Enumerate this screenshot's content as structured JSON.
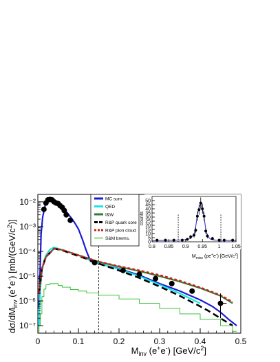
{
  "chart_data": [
    {
      "type": "line",
      "xlabel": "M_inv (e⁺e⁻) [GeV/c²]",
      "ylabel": "dσ/dM_inv (e⁺e⁻) [mb/(GeV/c²)]",
      "xlim": [
        0,
        0.5
      ],
      "ylim": [
        5e-08,
        0.02
      ],
      "yscale": "log",
      "x_ticks": [
        "0",
        "0.1",
        "0.2",
        "0.3",
        "0.4",
        "0.5"
      ],
      "y_ticks": [
        "10⁻⁷",
        "10⁻⁶",
        "10⁻⁵",
        "10⁻⁴",
        "10⁻³",
        "10⁻²"
      ],
      "vertical_line_x": 0.15,
      "legend_position": "top-center",
      "series": [
        {
          "name": "MC sum",
          "color": "#1a1ad6",
          "style": "solid",
          "x": [
            0.003,
            0.008,
            0.012,
            0.018,
            0.025,
            0.032,
            0.04,
            0.05,
            0.06,
            0.07,
            0.08,
            0.09,
            0.1,
            0.11,
            0.12,
            0.13,
            0.14,
            0.15,
            0.2,
            0.25,
            0.3,
            0.35,
            0.4,
            0.43,
            0.45,
            0.47,
            0.49
          ],
          "y": [
            5e-07,
            0.0005,
            0.0025,
            0.007,
            0.012,
            0.0125,
            0.011,
            0.008,
            0.006,
            0.004,
            0.0025,
            0.0015,
            0.0008,
            0.0003,
            0.0001,
            4e-05,
            3.5e-05,
            3.2e-05,
            2e-05,
            1.1e-05,
            5e-06,
            2.5e-06,
            1.1e-06,
            6e-07,
            3.5e-07,
            1.8e-07,
            1e-07
          ]
        },
        {
          "name": "QED",
          "color": "#19e6e6",
          "style": "solid",
          "x": [
            0.003,
            0.006,
            0.01,
            0.015,
            0.02,
            0.03,
            0.04,
            0.05,
            0.06,
            0.08,
            0.1,
            0.12,
            0.15,
            0.2,
            0.25,
            0.3,
            0.35,
            0.4
          ],
          "y": [
            1e-07,
            3e-06,
            1.5e-05,
            4e-05,
            7e-05,
            0.00012,
            0.000145,
            0.00013,
            0.000115,
            9e-05,
            7e-05,
            5e-05,
            3.3e-05,
            1.9e-05,
            1e-05,
            4.5e-06,
            2e-06,
            8e-07
          ]
        },
        {
          "name": "I&W",
          "color": "#2e7d32",
          "style": "solid",
          "x": [
            0.003,
            0.01,
            0.02,
            0.04,
            0.06,
            0.08,
            0.1,
            0.12,
            0.15,
            0.2,
            0.25,
            0.3,
            0.35,
            0.4,
            0.45,
            0.48
          ],
          "y": [
            2e-06,
            2e-05,
            6e-05,
            0.00013,
            0.000115,
            9e-05,
            7e-05,
            5.5e-05,
            3.8e-05,
            2.4e-05,
            1.6e-05,
            1e-05,
            6e-06,
            3.3e-06,
            1.6e-06,
            8e-07
          ]
        },
        {
          "name": "R&P quark core",
          "color": "#000000",
          "style": "dashed",
          "x": [
            0.003,
            0.01,
            0.02,
            0.04,
            0.06,
            0.08,
            0.1,
            0.12,
            0.15,
            0.2,
            0.25,
            0.3,
            0.35,
            0.4,
            0.42,
            0.45,
            0.48
          ],
          "y": [
            2e-06,
            2e-05,
            6e-05,
            0.00013,
            0.00011,
            8.5e-05,
            6.5e-05,
            5e-05,
            3.2e-05,
            1.7e-05,
            8.5e-06,
            3.8e-06,
            1.6e-06,
            6e-07,
            4e-07,
            2e-07,
            1e-07
          ]
        },
        {
          "name": "R&P pion cloud",
          "color": "#cc1f1f",
          "style": "dotted",
          "x": [
            0.003,
            0.01,
            0.02,
            0.04,
            0.06,
            0.08,
            0.1,
            0.12,
            0.15,
            0.2,
            0.25,
            0.3,
            0.35,
            0.4,
            0.45,
            0.48
          ],
          "y": [
            2e-06,
            2e-05,
            6e-05,
            0.00013,
            0.000115,
            9e-05,
            7e-05,
            5.5e-05,
            3.8e-05,
            2.5e-05,
            1.7e-05,
            1.1e-05,
            6.5e-06,
            3.5e-06,
            1.7e-06,
            9e-07
          ]
        },
        {
          "name": "S&M brems.",
          "color": "#22bb22",
          "style": "step",
          "x": [
            0.003,
            0.006,
            0.01,
            0.015,
            0.02,
            0.03,
            0.04,
            0.05,
            0.06,
            0.08,
            0.1,
            0.12,
            0.15,
            0.2,
            0.25,
            0.3,
            0.35,
            0.4,
            0.45,
            0.48
          ],
          "y": [
            1e-07,
            3e-07,
            1.5e-06,
            3e-06,
            4.5e-06,
            5e-06,
            5e-06,
            4.2e-06,
            3.6e-06,
            2.9e-06,
            2.5e-06,
            2.1e-06,
            1.7e-06,
            1.2e-06,
            8e-07,
            5e-07,
            3e-07,
            1.8e-07,
            1e-07,
            6e-08
          ]
        },
        {
          "name": "data",
          "color": "#000000",
          "style": "markers",
          "x": [
            0.015,
            0.02,
            0.025,
            0.03,
            0.035,
            0.04,
            0.045,
            0.05,
            0.055,
            0.06,
            0.065,
            0.07,
            0.08,
            0.14,
            0.21,
            0.25,
            0.29,
            0.33,
            0.38,
            0.45
          ],
          "y": [
            0.005,
            0.009,
            0.012,
            0.0125,
            0.012,
            0.01,
            0.009,
            0.0085,
            0.007,
            0.006,
            0.0045,
            0.003,
            0.0018,
            3.5e-05,
            1.7e-05,
            1.2e-05,
            8e-06,
            5e-06,
            2.5e-06,
            8e-07
          ],
          "yerr_high": [
            null,
            null,
            null,
            null,
            null,
            null,
            null,
            null,
            null,
            null,
            null,
            null,
            null,
            null,
            null,
            null,
            null,
            null,
            null,
            1.2e-06
          ]
        }
      ]
    },
    {
      "type": "scatter",
      "xlabel": "M_miss (pe⁺e⁻) [GeV/c²]",
      "ylabel": "counts",
      "xlim": [
        0.8,
        1.05
      ],
      "ylim": [
        0,
        55
      ],
      "x_ticks": [
        "0.8",
        "0.85",
        "0.9",
        "0.95",
        "1",
        "1.05"
      ],
      "y_ticks": [
        "0",
        "5",
        "10",
        "15",
        "20",
        "25",
        "30",
        "35",
        "40",
        "45",
        "50"
      ],
      "cut_lines_x": [
        0.878,
        1.005
      ],
      "points": {
        "x": [
          0.815,
          0.84,
          0.865,
          0.89,
          0.905,
          0.915,
          0.925,
          0.93,
          0.935,
          0.94,
          0.945,
          0.95,
          0.955,
          0.96,
          0.965,
          0.98,
          1.0,
          1.015,
          1.04
        ],
        "y": [
          2,
          2,
          2,
          2,
          3,
          6,
          8,
          14,
          31,
          39,
          47,
          40,
          31,
          13,
          7,
          4,
          2,
          2,
          2
        ],
        "err": [
          1.4,
          1.4,
          1.4,
          1.4,
          1.7,
          2.4,
          2.8,
          3.7,
          5.5,
          6.2,
          6.8,
          6.3,
          5.5,
          3.6,
          2.6,
          2,
          1.4,
          1.4,
          1.4
        ]
      },
      "fit": {
        "color": "#2222cc",
        "x": [
          0.8,
          0.87,
          0.9,
          0.915,
          0.925,
          0.93,
          0.935,
          0.94,
          0.945,
          0.95,
          0.955,
          0.96,
          0.965,
          0.975,
          0.99,
          1.05
        ],
        "y": [
          1.5,
          2,
          2.5,
          4,
          9,
          18,
          33,
          42,
          46,
          41,
          30,
          15,
          7,
          3,
          2,
          1.5
        ]
      }
    }
  ]
}
